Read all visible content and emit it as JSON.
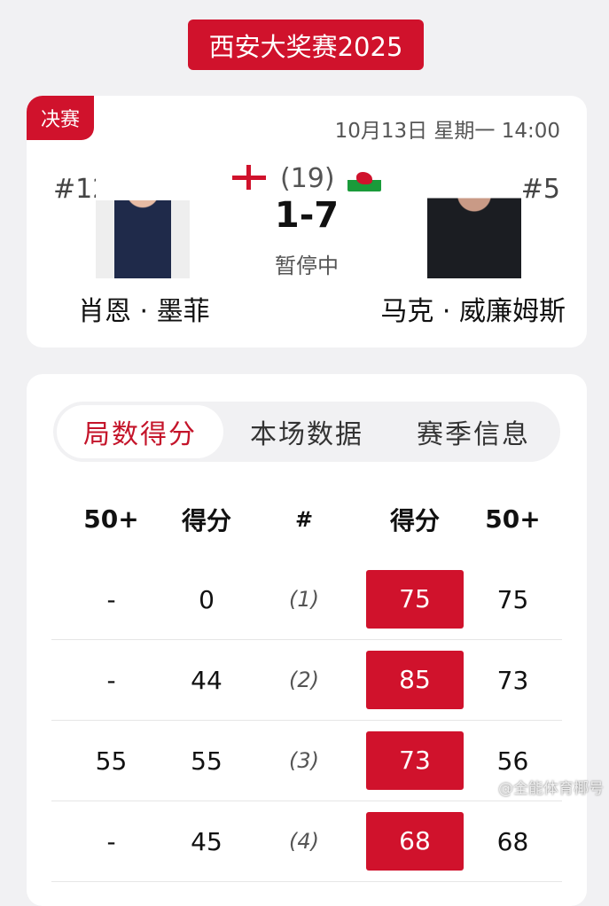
{
  "title": "西安大奖赛2025",
  "match": {
    "stage": "决赛",
    "datetime": "10月13日 星期一 14:00",
    "frames_label": "(19)",
    "score": "1-7",
    "status": "暂停中",
    "player1": {
      "rank": "#12",
      "name": "肖恩 · 墨菲",
      "flag": "england-flag"
    },
    "player2": {
      "rank": "#5",
      "name": "马克 · 威廉姆斯",
      "flag": "wales-flag"
    }
  },
  "tabs": [
    {
      "label": "局数得分",
      "active": true
    },
    {
      "label": "本场数据",
      "active": false
    },
    {
      "label": "赛季信息",
      "active": false
    }
  ],
  "table": {
    "headers": [
      "50+",
      "得分",
      "#",
      "得分",
      "50+"
    ],
    "rows": [
      [
        "-",
        "0",
        "(1)",
        "75",
        "75"
      ],
      [
        "-",
        "44",
        "(2)",
        "85",
        "73"
      ],
      [
        "55",
        "55",
        "(3)",
        "73",
        "56"
      ],
      [
        "-",
        "45",
        "(4)",
        "68",
        "68"
      ]
    ]
  },
  "watermark": "@全能体育椰号",
  "colors": {
    "accent": "#d0122c"
  }
}
